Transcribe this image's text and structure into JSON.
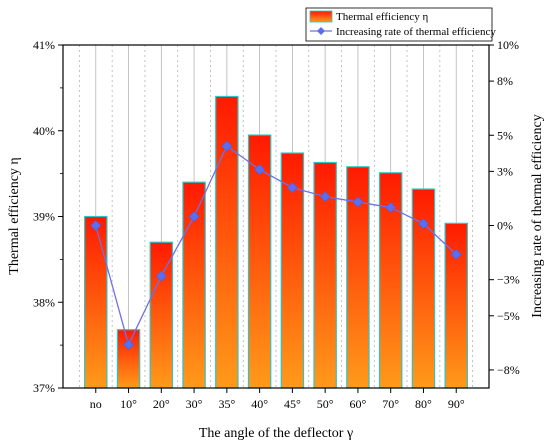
{
  "chart_data": {
    "type": "bar",
    "xlabel": "The angle of the deflector γ",
    "ylabel": "Thermal efficiency η",
    "y2label": "Increasing rate of thermal efficiency",
    "categories": [
      "no",
      "10°",
      "20°",
      "30°",
      "35°",
      "40°",
      "45°",
      "50°",
      "60°",
      "70°",
      "80°",
      "90°"
    ],
    "ylim": [
      37,
      41
    ],
    "yticks": [
      37,
      38,
      39,
      40,
      41
    ],
    "ytick_labels": [
      "37%",
      "38%",
      "39%",
      "40%",
      "41%"
    ],
    "y2lim": [
      -9,
      10
    ],
    "y2ticks": [
      -8,
      -5,
      -3,
      0,
      3,
      5,
      8,
      10
    ],
    "y2tick_labels": [
      "−8%",
      "−5%",
      "−3%",
      "0%",
      "3%",
      "5%",
      "8%",
      "10%"
    ],
    "grid": true,
    "legend_position": "top-right",
    "series": [
      {
        "name": "Thermal efficiency η",
        "kind": "bar",
        "axis": "left",
        "values": [
          39.0,
          37.68,
          38.7,
          39.4,
          40.4,
          39.95,
          39.74,
          39.63,
          39.58,
          39.51,
          39.32,
          38.92
        ]
      },
      {
        "name": "Increasing rate of thermal efficiency",
        "kind": "line",
        "axis": "right",
        "values": [
          0.0,
          -6.6,
          -2.8,
          0.5,
          4.4,
          3.1,
          2.1,
          1.6,
          1.3,
          1.0,
          0.1,
          -1.6
        ]
      }
    ],
    "colors": {
      "bar_top": "#ff1a00",
      "bar_bottom": "#ff9a1a",
      "bar_edge": "#2ec4c4",
      "line": "#6f6fe8",
      "marker": "#5a6ff0"
    }
  }
}
